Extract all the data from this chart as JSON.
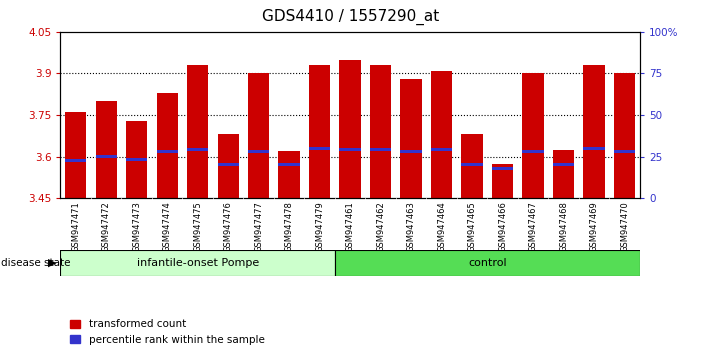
{
  "title": "GDS4410 / 1557290_at",
  "samples": [
    "GSM947471",
    "GSM947472",
    "GSM947473",
    "GSM947474",
    "GSM947475",
    "GSM947476",
    "GSM947477",
    "GSM947478",
    "GSM947479",
    "GSM947461",
    "GSM947462",
    "GSM947463",
    "GSM947464",
    "GSM947465",
    "GSM947466",
    "GSM947467",
    "GSM947468",
    "GSM947469",
    "GSM947470"
  ],
  "bar_values": [
    3.76,
    3.8,
    3.73,
    3.83,
    3.93,
    3.68,
    3.9,
    3.62,
    3.93,
    3.95,
    3.93,
    3.88,
    3.91,
    3.68,
    3.575,
    3.9,
    3.625,
    3.93,
    3.9
  ],
  "percentile_values": [
    3.585,
    3.6,
    3.588,
    3.617,
    3.627,
    3.572,
    3.617,
    3.572,
    3.63,
    3.627,
    3.627,
    3.617,
    3.627,
    3.572,
    3.557,
    3.617,
    3.572,
    3.63,
    3.617
  ],
  "y_min": 3.45,
  "y_max": 4.05,
  "y_ticks": [
    3.45,
    3.6,
    3.75,
    3.9,
    4.05
  ],
  "y_tick_labels": [
    "3.45",
    "3.6",
    "3.75",
    "3.9",
    "4.05"
  ],
  "y2_ticks": [
    3.45,
    3.6,
    3.75,
    3.9,
    4.05
  ],
  "y2_tick_labels": [
    "0",
    "25",
    "50",
    "75",
    "100%"
  ],
  "grid_lines": [
    3.6,
    3.75,
    3.9
  ],
  "bar_color": "#cc0000",
  "blue_color": "#3333cc",
  "xtick_bg_color": "#d4d4d4",
  "group1_color": "#ccffcc",
  "group2_color": "#55dd55",
  "group1_label": "infantile-onset Pompe",
  "group2_label": "control",
  "group1_count": 9,
  "group2_count": 10,
  "disease_state_label": "disease state",
  "legend_items": [
    "transformed count",
    "percentile rank within the sample"
  ],
  "title_fontsize": 11,
  "tick_fontsize": 7.5,
  "bar_width": 0.7
}
